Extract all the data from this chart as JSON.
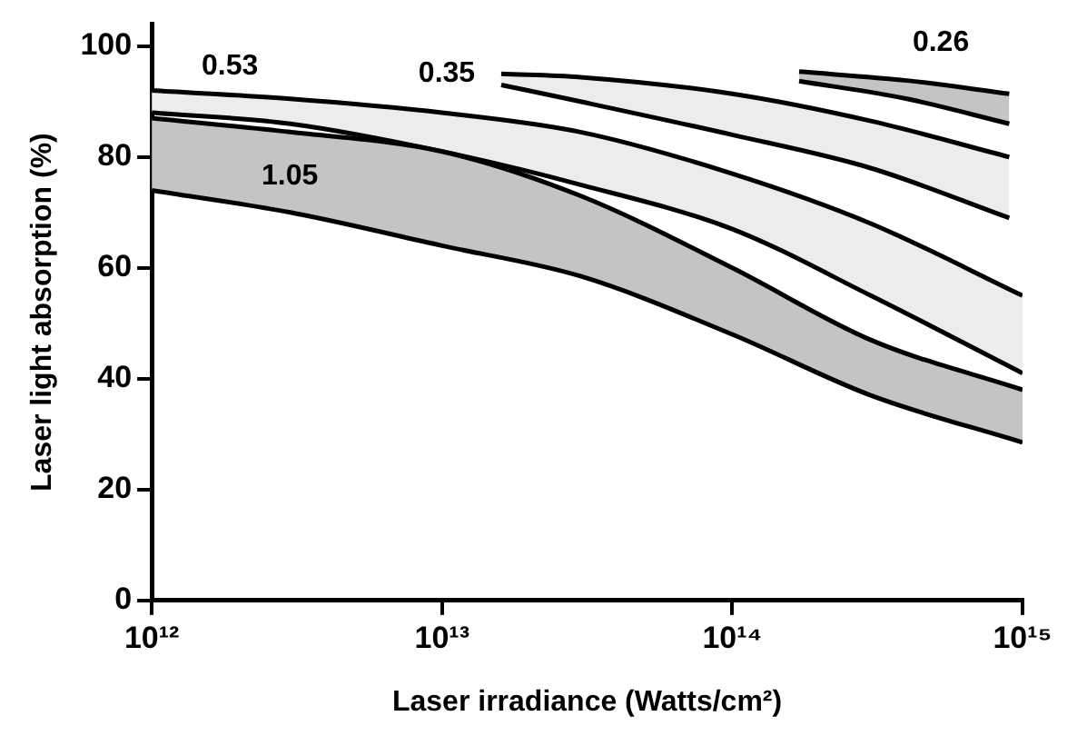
{
  "chart_data": {
    "type": "area",
    "xlabel": "Laser irradiance (Watts/cm²)",
    "ylabel": "Laser light absorption (%)",
    "log": "x",
    "grid": false,
    "legend": false,
    "xlim": [
      1000000000000.0,
      1000000000000000.0
    ],
    "xticks": [
      {
        "value": 1000000000000.0,
        "label": "10¹²"
      },
      {
        "value": 10000000000000.0,
        "label": "10¹³"
      },
      {
        "value": 100000000000000.0,
        "label": "10¹⁴"
      },
      {
        "value": 1000000000000000.0,
        "label": "10¹⁵"
      }
    ],
    "ylim": [
      0,
      104
    ],
    "yticks": [
      0,
      20,
      40,
      60,
      80,
      100
    ],
    "series": [
      {
        "type": "line",
        "color": "#000000",
        "x": [
          1000000000000.0,
          3000000000000.0,
          10000000000000.0,
          30000000000000.0,
          100000000000000.0,
          300000000000000.0,
          1000000000000000.0
        ],
        "values": [
          74,
          70,
          64,
          58.5,
          48,
          37,
          28.5
        ]
      },
      {
        "type": "area",
        "name": "1.05",
        "color": "#c4c4c4",
        "x": [
          1000000000000.0,
          3000000000000.0,
          10000000000000.0,
          30000000000000.0,
          100000000000000.0,
          300000000000000.0,
          1000000000000000.0
        ],
        "values": [
          87,
          84.5,
          81,
          73,
          60,
          47,
          38
        ]
      },
      {
        "type": "line",
        "color": "#000000",
        "x": [
          1000000000000.0,
          3000000000000.0,
          10000000000000.0,
          30000000000000.0,
          100000000000000.0,
          300000000000000.0,
          1000000000000000.0
        ],
        "values": [
          88,
          86,
          81,
          75,
          67,
          55,
          41
        ]
      },
      {
        "type": "area",
        "name": "0.53",
        "color": "#ececec",
        "x": [
          1000000000000.0,
          3000000000000.0,
          10000000000000.0,
          30000000000000.0,
          100000000000000.0,
          300000000000000.0,
          1000000000000000.0
        ],
        "values": [
          92,
          90.5,
          88,
          84.5,
          77,
          68,
          55
        ]
      },
      {
        "type": "line",
        "color": "#000000",
        "x": [
          16000000000000.0,
          30000000000000.0,
          100000000000000.0,
          300000000000000.0,
          900000000000000.0
        ],
        "values": [
          93,
          90,
          84,
          78,
          69
        ]
      },
      {
        "type": "area",
        "name": "0.35",
        "color": "#ececec",
        "x": [
          16000000000000.0,
          30000000000000.0,
          100000000000000.0,
          300000000000000.0,
          900000000000000.0
        ],
        "values": [
          95,
          94.4,
          91.4,
          86.5,
          80
        ]
      },
      {
        "type": "line",
        "color": "#000000",
        "x": [
          170000000000000.0,
          400000000000000.0,
          900000000000000.0
        ],
        "values": [
          93.7,
          90.5,
          86
        ]
      },
      {
        "type": "area",
        "name": "0.26",
        "color": "#c4c4c4",
        "x": [
          170000000000000.0,
          400000000000000.0,
          900000000000000.0
        ],
        "values": [
          95.4,
          93.8,
          91.4
        ]
      }
    ]
  }
}
